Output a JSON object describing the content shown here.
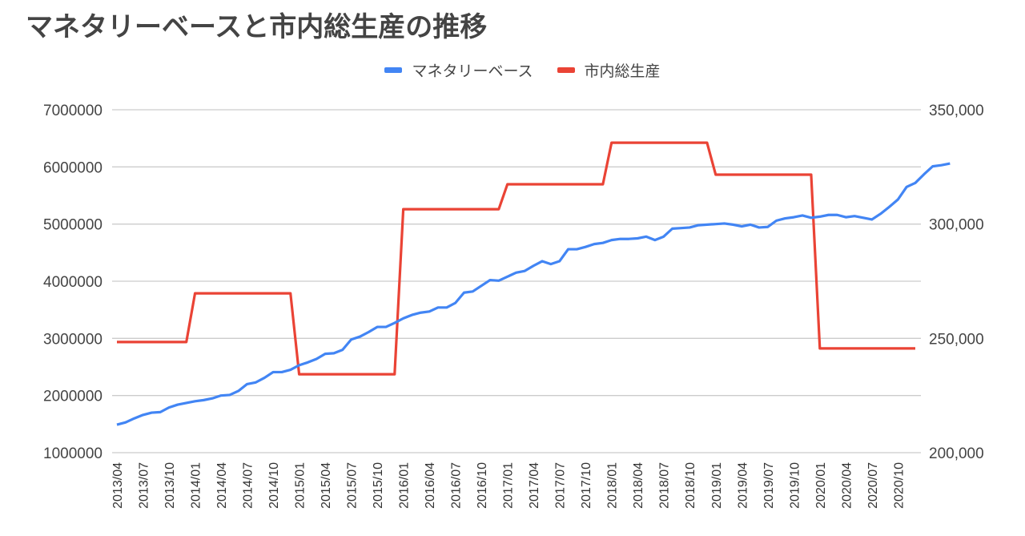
{
  "title": "マネタリーベースと市内総生産の推移",
  "legend": [
    {
      "label": "マネタリーベース",
      "color": "#4285f4"
    },
    {
      "label": "市内総生産",
      "color": "#ea4335"
    }
  ],
  "chart_data": {
    "type": "line",
    "title": "マネタリーベースと市内総生産の推移",
    "xlabel": "",
    "ylabel": "",
    "grid": true,
    "legend_position": "top",
    "x_tick_labels": [
      "2013/04",
      "2013/07",
      "2013/10",
      "2014/01",
      "2014/04",
      "2014/07",
      "2014/10",
      "2015/01",
      "2015/04",
      "2015/07",
      "2015/10",
      "2016/01",
      "2016/04",
      "2016/07",
      "2016/10",
      "2017/01",
      "2017/04",
      "2017/07",
      "2017/10",
      "2018/01",
      "2018/04",
      "2018/07",
      "2018/10",
      "2019/01",
      "2019/04",
      "2019/07",
      "2019/10",
      "2020/01",
      "2020/04",
      "2020/07",
      "2020/10"
    ],
    "x_start": "2013/04",
    "x_end": "2020/12",
    "x_step": "monthly",
    "left_axis": {
      "ticks": [
        1000000,
        2000000,
        3000000,
        4000000,
        5000000,
        6000000,
        7000000
      ],
      "tick_labels": [
        "1000000",
        "2000000",
        "3000000",
        "4000000",
        "5000000",
        "6000000",
        "7000000"
      ],
      "ylim": [
        1000000,
        7000000
      ]
    },
    "right_axis": {
      "ticks": [
        200000,
        250000,
        300000,
        350000
      ],
      "tick_labels": [
        "200,000",
        "250,000",
        "300,000",
        "350,000"
      ],
      "ylim": [
        200000,
        350000
      ]
    },
    "series": [
      {
        "name": "マネタリーベース",
        "axis": "left",
        "color": "#4285f4",
        "values": [
          1490000,
          1530000,
          1600000,
          1660000,
          1700000,
          1710000,
          1790000,
          1840000,
          1870000,
          1900000,
          1920000,
          1950000,
          2000000,
          2010000,
          2080000,
          2200000,
          2230000,
          2310000,
          2410000,
          2410000,
          2450000,
          2530000,
          2580000,
          2640000,
          2730000,
          2740000,
          2800000,
          2980000,
          3030000,
          3110000,
          3200000,
          3200000,
          3270000,
          3350000,
          3410000,
          3450000,
          3470000,
          3540000,
          3540000,
          3620000,
          3800000,
          3820000,
          3920000,
          4020000,
          4010000,
          4080000,
          4150000,
          4180000,
          4270000,
          4350000,
          4300000,
          4350000,
          4560000,
          4560000,
          4600000,
          4650000,
          4670000,
          4720000,
          4740000,
          4740000,
          4750000,
          4780000,
          4720000,
          4780000,
          4920000,
          4930000,
          4940000,
          4980000,
          4990000,
          5000000,
          5010000,
          4990000,
          4960000,
          4990000,
          4940000,
          4950000,
          5060000,
          5100000,
          5120000,
          5150000,
          5110000,
          5130000,
          5160000,
          5160000,
          5120000,
          5140000,
          5110000,
          5080000,
          5180000,
          5300000,
          5430000,
          5650000,
          5720000,
          5870000,
          6010000,
          6030000,
          6060000
        ]
      },
      {
        "name": "市内総生産",
        "axis": "right",
        "color": "#ea4335",
        "step_periods": [
          {
            "from": "2013/04",
            "to": "2013/12",
            "value": 248400
          },
          {
            "from": "2014/01",
            "to": "2014/12",
            "value": 269700
          },
          {
            "from": "2015/01",
            "to": "2015/12",
            "value": 234300
          },
          {
            "from": "2016/01",
            "to": "2016/12",
            "value": 306500
          },
          {
            "from": "2017/01",
            "to": "2017/12",
            "value": 317400
          },
          {
            "from": "2018/01",
            "to": "2018/12",
            "value": 335600
          },
          {
            "from": "2019/01",
            "to": "2019/12",
            "value": 321600
          },
          {
            "from": "2020/01",
            "to": "2020/12",
            "value": 245600
          }
        ]
      }
    ]
  }
}
